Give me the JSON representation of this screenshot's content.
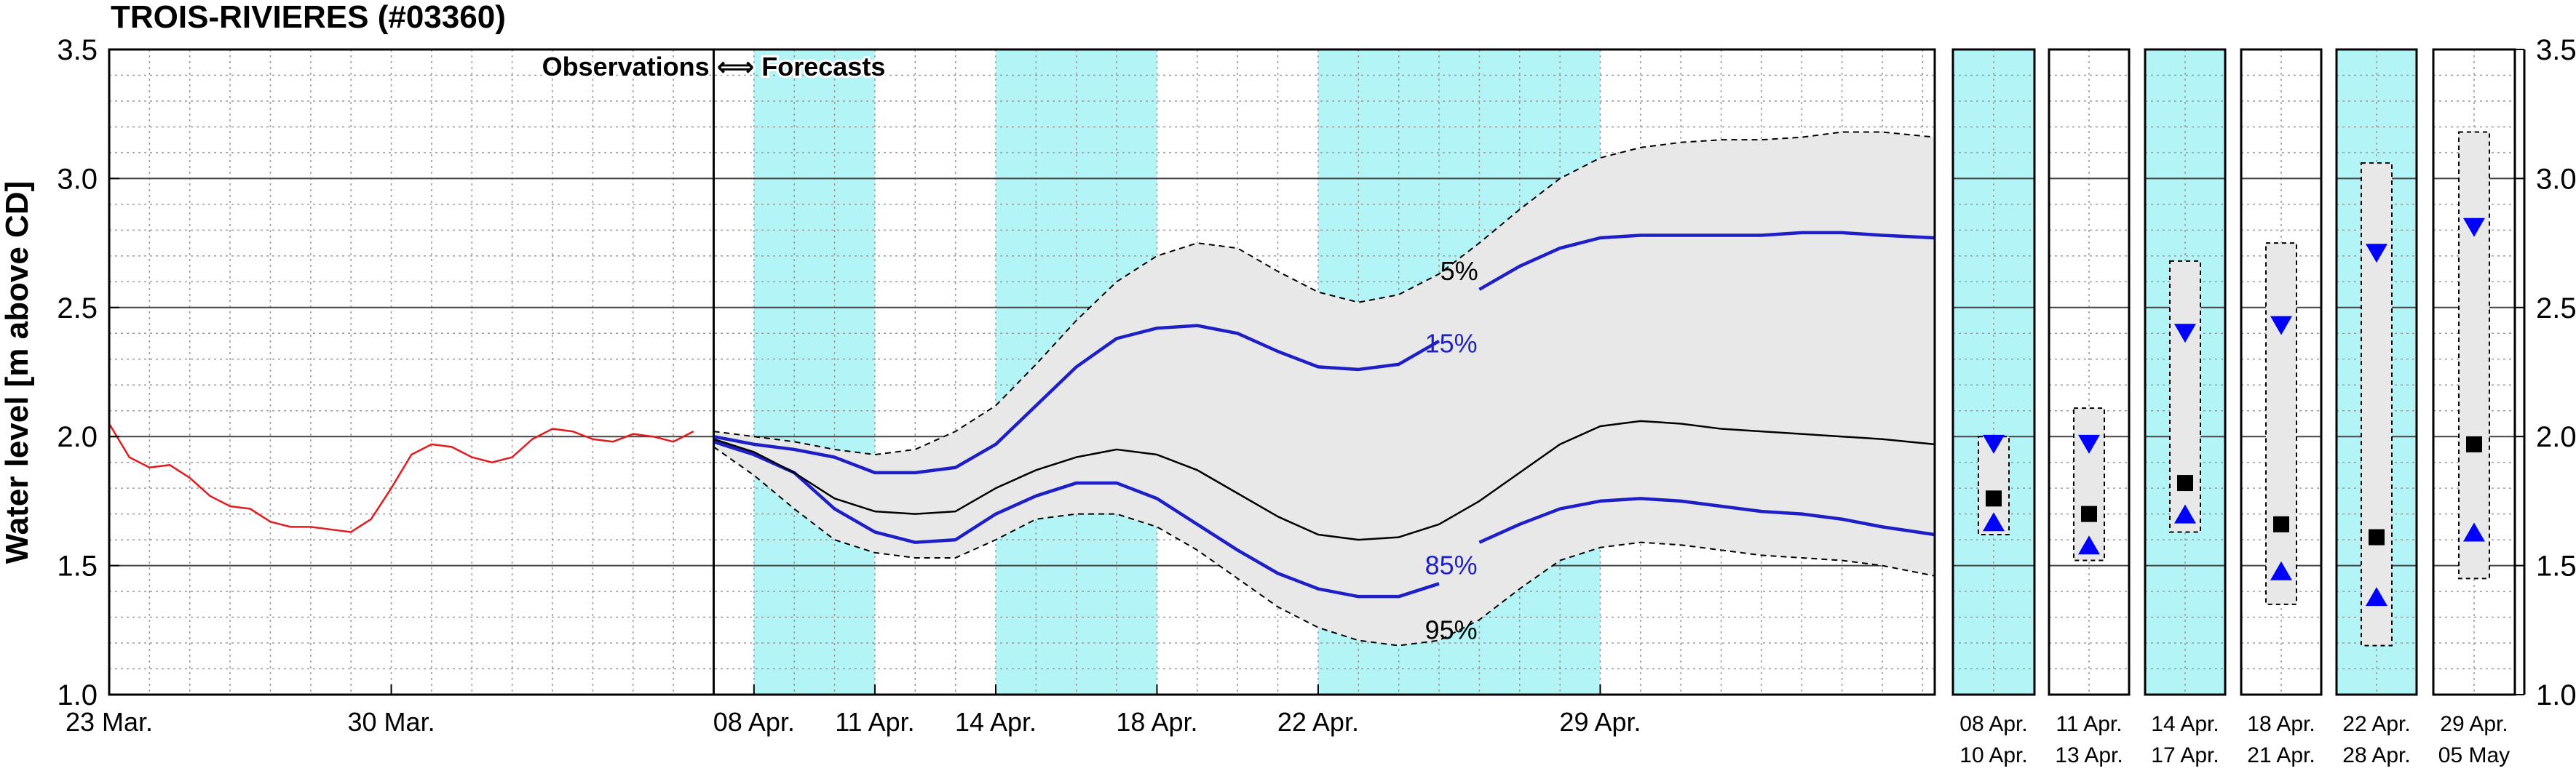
{
  "chart_data": {
    "type": "line",
    "title": "TROIS-RIVIERES (#03360)",
    "ylabel": "Water level [m above CD]",
    "ylim": [
      1.0,
      3.5
    ],
    "y_ticks": [
      "1.0",
      "1.5",
      "2.0",
      "2.5",
      "3.0",
      "3.5"
    ],
    "grid": true,
    "main_x_range_days": [
      0,
      45.3
    ],
    "x_ticks": [
      {
        "day": 0,
        "label": "23 Mar."
      },
      {
        "day": 7,
        "label": "30 Mar."
      },
      {
        "day": 16,
        "label": "08 Apr."
      },
      {
        "day": 19,
        "label": "11 Apr."
      },
      {
        "day": 22,
        "label": "14 Apr."
      },
      {
        "day": 26,
        "label": "18 Apr."
      },
      {
        "day": 30,
        "label": "22 Apr."
      },
      {
        "day": 37,
        "label": "29 Apr."
      }
    ],
    "divider_label": "Observations ⟺ Forecasts",
    "divider_day": 15,
    "highlight_spans_days": [
      [
        16,
        19
      ],
      [
        22,
        26
      ],
      [
        30,
        37
      ]
    ],
    "observations": {
      "color": "#e41a1c",
      "x": [
        0,
        0.5,
        1,
        1.5,
        2,
        2.5,
        3,
        3.5,
        4,
        4.5,
        5,
        5.5,
        6,
        6.5,
        7,
        7.5,
        8,
        8.5,
        9,
        9.5,
        10,
        10.5,
        11,
        11.5,
        12,
        12.5,
        13,
        13.5,
        14,
        14.5
      ],
      "y": [
        2.05,
        1.92,
        1.88,
        1.89,
        1.84,
        1.77,
        1.73,
        1.72,
        1.67,
        1.65,
        1.65,
        1.64,
        1.63,
        1.68,
        1.8,
        1.93,
        1.97,
        1.96,
        1.92,
        1.9,
        1.92,
        1.99,
        2.03,
        2.02,
        1.99,
        1.98,
        2.01,
        2.0,
        1.98,
        2.02
      ]
    },
    "forecast_x": [
      15,
      16,
      17,
      18,
      19,
      20,
      21,
      22,
      23,
      24,
      25,
      26,
      27,
      28,
      29,
      30,
      31,
      32,
      33,
      34,
      35,
      36,
      37,
      38,
      39,
      40,
      41,
      42,
      43,
      44,
      45.3
    ],
    "band_5": [
      2.02,
      2.0,
      1.98,
      1.95,
      1.93,
      1.95,
      2.02,
      2.12,
      2.28,
      2.45,
      2.6,
      2.7,
      2.75,
      2.73,
      2.64,
      2.56,
      2.52,
      2.55,
      2.63,
      2.75,
      2.88,
      3.0,
      3.08,
      3.12,
      3.14,
      3.15,
      3.15,
      3.16,
      3.18,
      3.18,
      3.16
    ],
    "band_95": [
      1.96,
      1.85,
      1.72,
      1.6,
      1.55,
      1.53,
      1.53,
      1.6,
      1.68,
      1.7,
      1.7,
      1.65,
      1.56,
      1.45,
      1.34,
      1.26,
      1.21,
      1.19,
      1.21,
      1.29,
      1.41,
      1.52,
      1.57,
      1.59,
      1.58,
      1.56,
      1.54,
      1.53,
      1.52,
      1.5,
      1.46
    ],
    "series": [
      {
        "name": "15%",
        "color": "#1f1fc8",
        "x": [
          15,
          16,
          17,
          18,
          19,
          20,
          21,
          22,
          23,
          24,
          25,
          26,
          27,
          28,
          29,
          30,
          31,
          32,
          33
        ],
        "y": [
          2.0,
          1.97,
          1.95,
          1.92,
          1.86,
          1.86,
          1.88,
          1.97,
          2.12,
          2.27,
          2.38,
          2.42,
          2.43,
          2.4,
          2.33,
          2.27,
          2.26,
          2.28,
          2.37
        ]
      },
      {
        "name": "5%",
        "color": "#1f1fc8",
        "x": [
          34,
          35,
          36,
          37,
          38,
          39,
          40,
          41,
          42,
          43,
          44,
          45.3
        ],
        "y": [
          2.57,
          2.66,
          2.73,
          2.77,
          2.78,
          2.78,
          2.78,
          2.78,
          2.79,
          2.79,
          2.78,
          2.77
        ]
      },
      {
        "name": "85%",
        "color": "#1f1fc8",
        "x": [
          15,
          16,
          17,
          18,
          19,
          20,
          21,
          22,
          23,
          24,
          25,
          26,
          27,
          28,
          29,
          30,
          31,
          32,
          33
        ],
        "y": [
          1.98,
          1.93,
          1.86,
          1.72,
          1.63,
          1.59,
          1.6,
          1.7,
          1.77,
          1.82,
          1.82,
          1.76,
          1.66,
          1.56,
          1.47,
          1.41,
          1.38,
          1.38,
          1.43
        ]
      },
      {
        "name": "95%",
        "color": "#1f1fc8",
        "x": [
          34,
          35,
          36,
          37,
          38,
          39,
          40,
          41,
          42,
          43,
          44,
          45.3
        ],
        "y": [
          1.59,
          1.66,
          1.72,
          1.75,
          1.76,
          1.75,
          1.73,
          1.71,
          1.7,
          1.68,
          1.65,
          1.62
        ]
      },
      {
        "name": "median",
        "color": "#000000",
        "x": [
          15,
          16,
          17,
          18,
          19,
          20,
          21,
          22,
          23,
          24,
          25,
          26,
          27,
          28,
          29,
          30,
          31,
          32,
          33,
          34,
          35,
          36,
          37,
          38,
          39,
          40,
          41,
          42,
          43,
          44,
          45.3
        ],
        "y": [
          1.99,
          1.94,
          1.86,
          1.76,
          1.71,
          1.7,
          1.71,
          1.8,
          1.87,
          1.92,
          1.95,
          1.93,
          1.87,
          1.78,
          1.69,
          1.62,
          1.6,
          1.61,
          1.66,
          1.75,
          1.86,
          1.97,
          2.04,
          2.06,
          2.05,
          2.03,
          2.02,
          2.01,
          2.0,
          1.99,
          1.97
        ]
      }
    ],
    "annotations": [
      {
        "text": "5%",
        "day": 33.5,
        "y": 2.64,
        "color": "#000000"
      },
      {
        "text": "15%",
        "day": 33.3,
        "y": 2.36,
        "color": "#1f1fc8"
      },
      {
        "text": "85%",
        "day": 33.3,
        "y": 1.5,
        "color": "#1f1fc8"
      },
      {
        "text": "95%",
        "day": 33.3,
        "y": 1.25,
        "color": "#000000"
      }
    ],
    "period_panels": [
      {
        "label1": "08 Apr.",
        "label2": "10 Apr.",
        "highlight": true,
        "hi": 2.0,
        "lo": 1.62,
        "max": 1.97,
        "median": 1.76,
        "min": 1.67
      },
      {
        "label1": "11 Apr.",
        "label2": "13 Apr.",
        "highlight": false,
        "hi": 2.11,
        "lo": 1.52,
        "max": 1.97,
        "median": 1.7,
        "min": 1.58
      },
      {
        "label1": "14 Apr.",
        "label2": "17 Apr.",
        "highlight": true,
        "hi": 2.68,
        "lo": 1.63,
        "max": 2.4,
        "median": 1.82,
        "min": 1.7
      },
      {
        "label1": "18 Apr.",
        "label2": "21 Apr.",
        "highlight": false,
        "hi": 2.75,
        "lo": 1.35,
        "max": 2.43,
        "median": 1.66,
        "min": 1.48
      },
      {
        "label1": "22 Apr.",
        "label2": "28 Apr.",
        "highlight": true,
        "hi": 3.06,
        "lo": 1.19,
        "max": 2.71,
        "median": 1.61,
        "min": 1.38
      },
      {
        "label1": "29 Apr.",
        "label2": "05 May",
        "highlight": false,
        "hi": 3.18,
        "lo": 1.45,
        "max": 2.81,
        "median": 1.97,
        "min": 1.63
      }
    ],
    "colors": {
      "highlight": "#b3f5f7",
      "band": "#e8e8e8",
      "forecast": "#1f1fc8",
      "observed": "#e41a1c",
      "marker": "#0000ff"
    }
  }
}
